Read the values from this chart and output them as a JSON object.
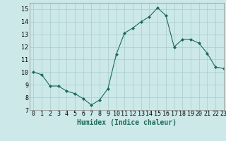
{
  "x": [
    0,
    1,
    2,
    3,
    4,
    5,
    6,
    7,
    8,
    9,
    10,
    11,
    12,
    13,
    14,
    15,
    16,
    17,
    18,
    19,
    20,
    21,
    22,
    23
  ],
  "y": [
    10.0,
    9.8,
    8.9,
    8.9,
    8.5,
    8.3,
    7.9,
    7.4,
    7.8,
    8.7,
    11.4,
    13.1,
    13.5,
    14.0,
    14.4,
    15.1,
    14.5,
    12.0,
    12.6,
    12.6,
    12.3,
    11.5,
    10.4,
    10.3
  ],
  "xlabel": "Humidex (Indice chaleur)",
  "ylim": [
    7,
    15.5
  ],
  "xlim": [
    -0.5,
    23
  ],
  "yticks": [
    7,
    8,
    9,
    10,
    11,
    12,
    13,
    14,
    15
  ],
  "xticks": [
    0,
    1,
    2,
    3,
    4,
    5,
    6,
    7,
    8,
    9,
    10,
    11,
    12,
    13,
    14,
    15,
    16,
    17,
    18,
    19,
    20,
    21,
    22,
    23
  ],
  "line_color": "#1a6b5a",
  "marker": "D",
  "marker_size": 2,
  "bg_color": "#cce8e8",
  "grid_color": "#aacccc",
  "tick_fontsize": 6,
  "xlabel_fontsize": 7
}
